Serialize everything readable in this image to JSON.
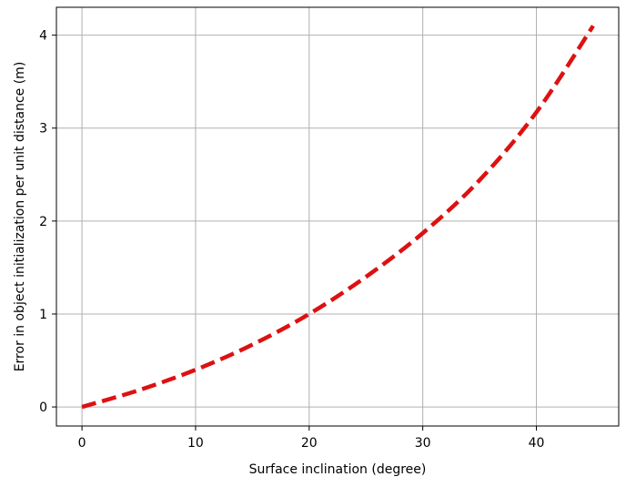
{
  "chart_data": {
    "type": "line",
    "title": "",
    "xlabel": "Surface inclination (degree)",
    "ylabel": "Error in object initialization per unit distance (m)",
    "xlim": [
      -2.25,
      47.25
    ],
    "ylim": [
      -0.205,
      4.3
    ],
    "xticks": [
      0,
      10,
      20,
      30,
      40
    ],
    "yticks": [
      0,
      1,
      2,
      3,
      4
    ],
    "grid": true,
    "series": [
      {
        "color": "#dd1111",
        "line_style": "dashed",
        "x": [
          0,
          5,
          10,
          15,
          20,
          25,
          30,
          35,
          40,
          45
        ],
        "y": [
          0.0,
          0.18,
          0.4,
          0.67,
          1.0,
          1.4,
          1.87,
          2.44,
          3.17,
          4.1
        ]
      }
    ]
  }
}
